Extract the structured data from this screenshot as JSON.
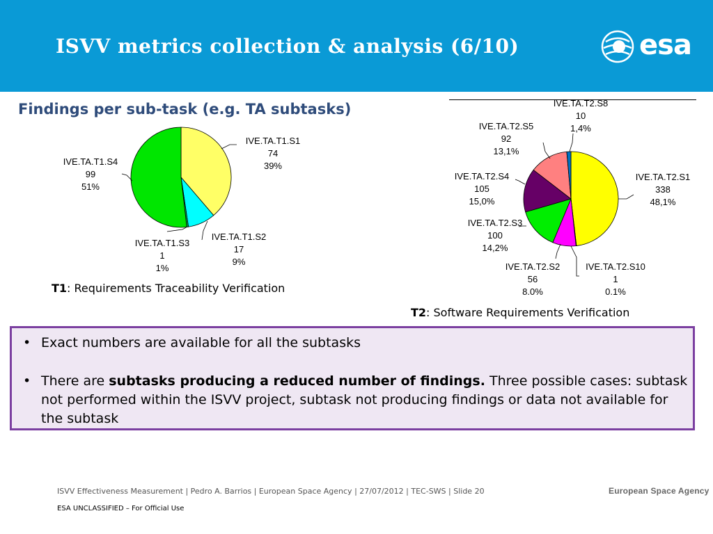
{
  "header": {
    "title": "ISVV metrics collection & analysis  (6/10)",
    "logo_text": "esa",
    "color": "#0a9ad6"
  },
  "subtitle": "Findings per sub-task (e.g. TA subtasks)",
  "chart_data": [
    {
      "type": "pie",
      "caption_bold": "T1",
      "caption_rest": ": Requirements Traceability Verification",
      "slices": [
        {
          "name": "IVE.TA.T1.S1",
          "value": 74,
          "pct": "39%",
          "color": "#ffff66"
        },
        {
          "name": "IVE.TA.T1.S2",
          "value": 17,
          "pct": "9%",
          "color": "#00ffff"
        },
        {
          "name": "IVE.TA.T1.S3",
          "value": 1,
          "pct": "1%",
          "color": "#00b050"
        },
        {
          "name": "IVE.TA.T1.S4",
          "value": 99,
          "pct": "51%",
          "color": "#00e600"
        }
      ]
    },
    {
      "type": "pie",
      "caption_bold": "T2",
      "caption_rest": ": Software Requirements Verification",
      "slices": [
        {
          "name": "IVE.TA.T2.S1",
          "value": 338,
          "pct": "48,1%",
          "color": "#ffff00"
        },
        {
          "name": "IVE.TA.T2.S10",
          "value": 1,
          "pct": "0.1%",
          "color": "#ffffff"
        },
        {
          "name": "IVE.TA.T2.S2",
          "value": 56,
          "pct": "8.0%",
          "color": "#ff00ff"
        },
        {
          "name": "IVE.TA.T2.S3",
          "value": 100,
          "pct": "14,2%",
          "color": "#00ee00"
        },
        {
          "name": "IVE.TA.T2.S4",
          "value": 105,
          "pct": "15,0%",
          "color": "#660066"
        },
        {
          "name": "IVE.TA.T2.S5",
          "value": 92,
          "pct": "13,1%",
          "color": "#ff8080"
        },
        {
          "name": "IVE.TA.T2.S8",
          "value": 10,
          "pct": "1,4%",
          "color": "#0070c0"
        }
      ]
    }
  ],
  "bullets": [
    {
      "text": "Exact numbers are available for all the subtasks"
    },
    {
      "pre": "There are ",
      "bold": "subtasks producing a reduced number of findings.",
      "post": " Three possible cases: subtask not performed within the ISVV project, subtask not producing findings or data not available for the subtask"
    }
  ],
  "bullet_symbol": "•",
  "footer": {
    "text": "ISVV Effectiveness Measurement | Pedro A. Barrios | European Space Agency | 27/07/2012 | TEC-SWS | Slide  20",
    "classification": "ESA UNCLASSIFIED – For Official Use",
    "logo": "European Space Agency"
  }
}
